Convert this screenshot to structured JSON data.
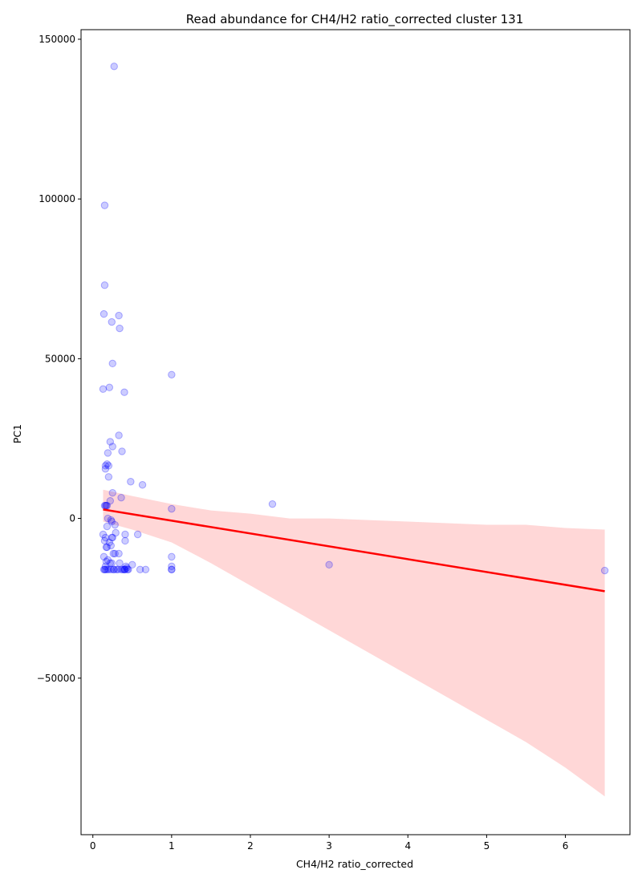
{
  "chart_data": {
    "type": "scatter",
    "title": "Read abundance for CH4/H2 ratio_corrected cluster 131",
    "xlabel": "CH4/H2 ratio_corrected",
    "ylabel": "PC1",
    "xlim": [
      -0.15,
      6.82
    ],
    "ylim": [
      -99000,
      153000
    ],
    "x_ticks": [
      0,
      1,
      2,
      3,
      4,
      5,
      6
    ],
    "x_tick_labels": [
      "0",
      "1",
      "2",
      "3",
      "4",
      "5",
      "6"
    ],
    "y_ticks": [
      -50000,
      0,
      50000,
      100000,
      150000
    ],
    "y_tick_labels": [
      "−50000",
      "0",
      "50000",
      "100000",
      "150000"
    ],
    "grid": false,
    "legend": "none",
    "colors": {
      "points": "#0000ff",
      "regression_line": "#ff0000",
      "confidence_band": "#ffb0b0"
    },
    "points_x": [
      0.27,
      0.15,
      0.15,
      0.14,
      0.33,
      0.24,
      0.34,
      0.25,
      1.0,
      0.13,
      0.21,
      0.4,
      0.33,
      0.22,
      0.25,
      0.37,
      0.19,
      0.18,
      0.2,
      0.16,
      0.16,
      0.2,
      0.48,
      0.63,
      0.25,
      0.36,
      0.22,
      0.15,
      0.17,
      0.18,
      0.16,
      1.0,
      2.28,
      0.19,
      0.23,
      0.24,
      0.28,
      0.18,
      0.29,
      0.13,
      0.41,
      0.57,
      0.25,
      0.24,
      0.16,
      0.15,
      0.41,
      0.21,
      0.18,
      0.23,
      0.17,
      0.28,
      0.26,
      0.33,
      0.14,
      1.0,
      0.19,
      0.17,
      0.24,
      0.34,
      0.22,
      0.5,
      0.16,
      0.42,
      1.0,
      0.43,
      0.4,
      0.45,
      1.0,
      1.0,
      0.36,
      0.38,
      0.32,
      0.26,
      0.6,
      0.67,
      0.23,
      0.2,
      0.18,
      0.16,
      0.14,
      0.15,
      0.27,
      0.3,
      0.41,
      0.44,
      0.4,
      3.0,
      6.5
    ],
    "points_y": [
      141500,
      98000,
      73000,
      64000,
      63500,
      61500,
      59500,
      48500,
      45000,
      40500,
      41000,
      39500,
      26000,
      24000,
      22500,
      21000,
      20500,
      17000,
      16500,
      16500,
      15500,
      13000,
      11500,
      10500,
      8000,
      6500,
      5500,
      4000,
      4000,
      4000,
      4000,
      3000,
      4500,
      0,
      -500,
      -1000,
      -2000,
      -2500,
      -4500,
      -5000,
      -5000,
      -5000,
      -6000,
      -6000,
      -6000,
      -7000,
      -7000,
      -7500,
      -9000,
      -8500,
      -9000,
      -11000,
      -11000,
      -11000,
      -12000,
      -12000,
      -13000,
      -13500,
      -14000,
      -14000,
      -14000,
      -14500,
      -15000,
      -15000,
      -15000,
      -15500,
      -16000,
      -16000,
      -16000,
      -16000,
      -16000,
      -16000,
      -16000,
      -16000,
      -16000,
      -16000,
      -16000,
      -16000,
      -16000,
      -16000,
      -16000,
      -16000,
      -16000,
      -16000,
      -16000,
      -16000,
      -16000,
      -14500,
      -16300
    ],
    "regression_line": {
      "x": [
        0.13,
        6.5
      ],
      "y": [
        2800,
        -22800
      ]
    },
    "confidence_band": {
      "x": [
        0.13,
        0.5,
        1.0,
        1.5,
        2.0,
        2.5,
        3.0,
        3.5,
        4.0,
        4.5,
        5.0,
        5.5,
        6.0,
        6.5
      ],
      "upper": [
        9000,
        7000,
        4500,
        2500,
        1500,
        0,
        0,
        -500,
        -1000,
        -1500,
        -2000,
        -2000,
        -3000,
        -3500
      ],
      "lower": [
        -1000,
        -3500,
        -7500,
        -14000,
        -21000,
        -28000,
        -35000,
        -42000,
        -49000,
        -56000,
        -63000,
        -70000,
        -78000,
        -87000
      ]
    }
  }
}
